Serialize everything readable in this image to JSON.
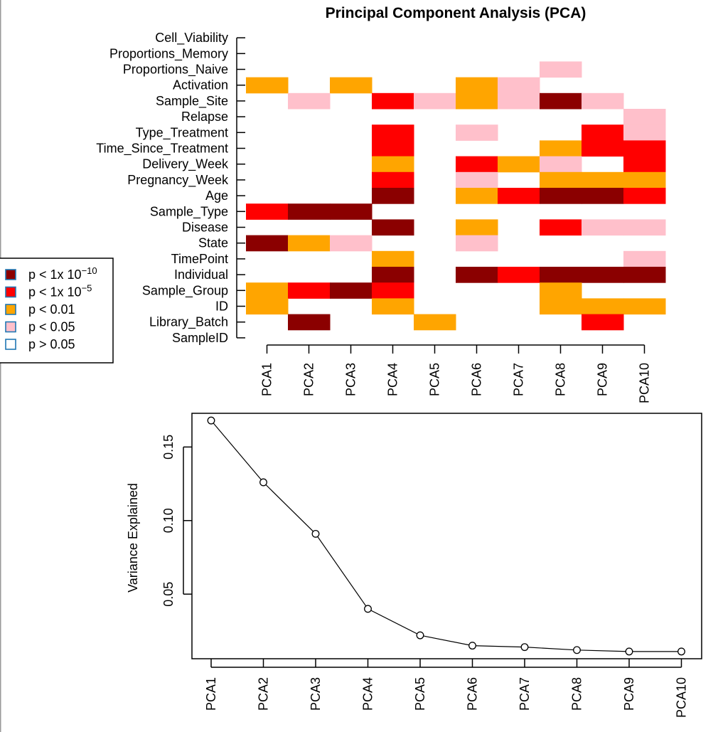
{
  "chart_data": [
    {
      "type": "heatmap",
      "title": "Principal Component Analysis (PCA)",
      "x_categories": [
        "PCA1",
        "PCA2",
        "PCA3",
        "PCA4",
        "PCA5",
        "PCA6",
        "PCA7",
        "PCA8",
        "PCA9",
        "PCA10"
      ],
      "y_categories": [
        "Cell_Viability",
        "Proportions_Memory",
        "Proportions_Naive",
        "Activation",
        "Sample_Site",
        "Relapse",
        "Type_Treatment",
        "Time_Since_Treatment",
        "Delivery_Week",
        "Pregnancy_Week",
        "Age",
        "Sample_Type",
        "Disease",
        "State",
        "TimePoint",
        "Individual",
        "Sample_Group",
        "ID",
        "Library_Batch",
        "SampleID"
      ],
      "level_colors": [
        "#8B0000",
        "#FF0000",
        "#FFA500",
        "#FFC0CB",
        "#FFFFFF"
      ],
      "legend": {
        "placement": "left",
        "entries": [
          {
            "prefix": "p < 1x 10",
            "exponent": "−10",
            "color": "#8B0000"
          },
          {
            "prefix": "p < 1x 10",
            "exponent": "−5",
            "color": "#FF0000"
          },
          {
            "prefix": "p < 0.01",
            "exponent": "",
            "color": "#FFA500"
          },
          {
            "prefix": "p < 0.05",
            "exponent": "",
            "color": "#FFC0CB"
          },
          {
            "prefix": "p > 0.05",
            "exponent": "",
            "color": "#FFFFFF"
          }
        ]
      },
      "levels": [
        [
          4,
          4,
          4,
          4,
          4,
          4,
          4,
          4,
          4,
          4
        ],
        [
          4,
          4,
          4,
          4,
          4,
          4,
          4,
          4,
          4,
          4
        ],
        [
          4,
          4,
          4,
          4,
          4,
          4,
          4,
          3,
          4,
          4
        ],
        [
          2,
          4,
          2,
          4,
          4,
          2,
          3,
          4,
          4,
          4
        ],
        [
          4,
          3,
          4,
          1,
          3,
          2,
          3,
          0,
          3,
          4
        ],
        [
          4,
          4,
          4,
          4,
          4,
          4,
          4,
          4,
          4,
          3
        ],
        [
          4,
          4,
          4,
          1,
          4,
          3,
          4,
          4,
          1,
          3
        ],
        [
          4,
          4,
          4,
          1,
          4,
          4,
          4,
          2,
          1,
          1
        ],
        [
          4,
          4,
          4,
          2,
          4,
          1,
          2,
          3,
          4,
          1
        ],
        [
          4,
          4,
          4,
          1,
          4,
          3,
          4,
          2,
          2,
          2
        ],
        [
          4,
          4,
          4,
          0,
          4,
          2,
          1,
          0,
          0,
          1
        ],
        [
          1,
          0,
          0,
          4,
          4,
          4,
          4,
          4,
          4,
          4
        ],
        [
          4,
          4,
          4,
          0,
          4,
          2,
          4,
          1,
          3,
          3
        ],
        [
          0,
          2,
          3,
          4,
          4,
          3,
          4,
          4,
          4,
          4
        ],
        [
          4,
          4,
          4,
          2,
          4,
          4,
          4,
          4,
          4,
          3
        ],
        [
          4,
          4,
          4,
          0,
          4,
          0,
          1,
          0,
          0,
          0
        ],
        [
          2,
          1,
          0,
          1,
          4,
          4,
          4,
          2,
          4,
          4
        ],
        [
          2,
          4,
          4,
          2,
          4,
          4,
          4,
          2,
          2,
          2
        ],
        [
          4,
          0,
          4,
          4,
          2,
          4,
          4,
          4,
          1,
          4
        ],
        [
          4,
          4,
          4,
          4,
          4,
          4,
          4,
          4,
          4,
          4
        ]
      ]
    },
    {
      "type": "line",
      "title": "",
      "xlabel": "",
      "ylabel": "Variance Explained",
      "categories": [
        "PCA1",
        "PCA2",
        "PCA3",
        "PCA4",
        "PCA5",
        "PCA6",
        "PCA7",
        "PCA8",
        "PCA9",
        "PCA10"
      ],
      "values": [
        0.168,
        0.126,
        0.091,
        0.04,
        0.022,
        0.015,
        0.014,
        0.012,
        0.011,
        0.011
      ],
      "yticks": [
        0.05,
        0.1,
        0.15
      ],
      "ytick_labels": [
        "0.05",
        "0.10",
        "0.15"
      ],
      "ylim": [
        0.0061,
        0.1729
      ],
      "markers": "open circles",
      "grid": false
    }
  ]
}
